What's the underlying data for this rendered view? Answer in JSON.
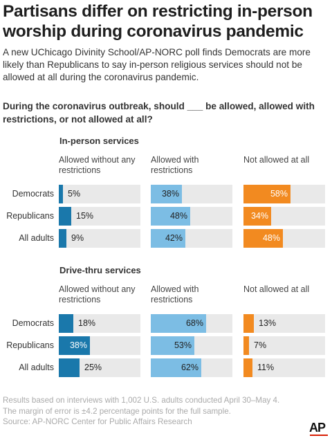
{
  "title": "Partisans differ on restricting in-person worship during coronavirus pandemic",
  "subtitle": "A new UChicago Divinity School/AP-NORC poll finds Democrats are more likely than Republicans to say in-person religious services should not be allowed at all during the coronavirus pandemic.",
  "question": "During the coronavirus outbreak, should ___ be allowed, allowed with restrictions, or not allowed at all?",
  "footer": {
    "line1": "Results based on interviews with 1,002 U.S. adults conducted April 30–May 4.",
    "line2": "The margin of error is ±4.2 percentage points for the full sample.",
    "line3": "Source: AP-NORC Center for Public Affairs Research"
  },
  "logo": "AP",
  "colors": {
    "no_restrictions": "#1a78ab",
    "with_restrictions": "#7cbde4",
    "not_allowed": "#f28a20",
    "track": "#e9e9e9"
  },
  "chart_data": [
    {
      "type": "bar",
      "title": "In-person services",
      "categories": [
        "Democrats",
        "Republicans",
        "All adults"
      ],
      "series": [
        {
          "name": "Allowed without any restrictions",
          "values": [
            5,
            15,
            9
          ],
          "labels": [
            "5%",
            "15%",
            "9%"
          ]
        },
        {
          "name": "Allowed with restrictions",
          "values": [
            38,
            48,
            42
          ],
          "labels": [
            "38%",
            "48%",
            "42%"
          ]
        },
        {
          "name": "Not allowed at all",
          "values": [
            58,
            34,
            48
          ],
          "labels": [
            "58%",
            "34%",
            "48%"
          ]
        }
      ],
      "ylim": [
        0,
        100
      ],
      "legend": "column headers above each panel",
      "grid": false
    },
    {
      "type": "bar",
      "title": "Drive-thru services",
      "categories": [
        "Democrats",
        "Republicans",
        "All adults"
      ],
      "series": [
        {
          "name": "Allowed without any restrictions",
          "values": [
            18,
            38,
            25
          ],
          "labels": [
            "18%",
            "38%",
            "25%"
          ]
        },
        {
          "name": "Allowed with restrictions",
          "values": [
            68,
            53,
            62
          ],
          "labels": [
            "68%",
            "53%",
            "62%"
          ]
        },
        {
          "name": "Not allowed at all",
          "values": [
            13,
            7,
            11
          ],
          "labels": [
            "13%",
            "7%",
            "11%"
          ]
        }
      ],
      "ylim": [
        0,
        100
      ],
      "legend": "column headers above each panel",
      "grid": false
    }
  ]
}
